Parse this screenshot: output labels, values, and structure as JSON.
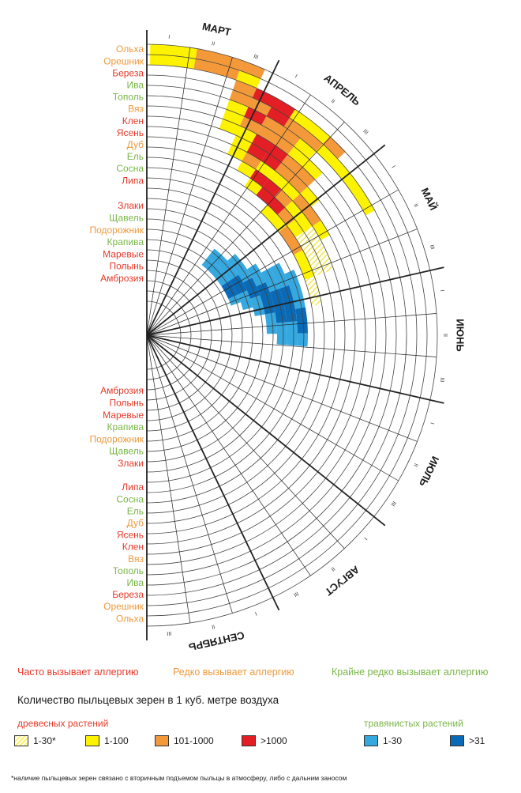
{
  "months": [
    "МАРТ",
    "АПРЕЛЬ",
    "МАЙ",
    "ИЮНЬ",
    "ИЮЛЬ",
    "АВГУСТ",
    "СЕНТЯБРЬ"
  ],
  "decade_marks": [
    "I",
    "II",
    "III"
  ],
  "colors": {
    "often": "#e8392a",
    "rare": "#ef9a3c",
    "very_rare": "#7ab648",
    "tree_low": "#fdf06a",
    "tree_1_100": "#fdf200",
    "tree_101_1000": "#f3993a",
    "tree_gt_1000": "#e31e24",
    "herb_1_30": "#35a8e0",
    "herb_gt_31": "#0a6ab5"
  },
  "chart_data": {
    "type": "radial-calendar",
    "title": "Количество пыльцевых зерен в 1 куб. метре воздуха",
    "time_axis": {
      "months": [
        "МАРТ",
        "АПРЕЛЬ",
        "МАЙ",
        "ИЮНЬ",
        "ИЮЛЬ",
        "АВГУСТ",
        "СЕНТЯБРЬ"
      ],
      "decades_per_month": [
        "I",
        "II",
        "III"
      ]
    },
    "categories": {
      "often": "Часто вызывает аллергию",
      "rare": "Редко вызывает аллергию",
      "very_rare": "Крайне редко вызывает аллергию"
    },
    "trees": [
      {
        "name": "Ольха",
        "category": "rare",
        "periods": [
          [
            2,
            3,
            "1-100"
          ],
          [
            4,
            5,
            "101-1000"
          ],
          [
            6,
            6,
            "101-1000"
          ]
        ]
      },
      {
        "name": "Орешник",
        "category": "rare",
        "periods": [
          [
            2,
            3,
            "1-100"
          ],
          [
            4,
            5,
            "101-1000"
          ],
          [
            6,
            6,
            "1-100"
          ]
        ]
      },
      {
        "name": "Береза",
        "category": "often",
        "periods": [
          [
            6,
            6,
            "101-1000"
          ],
          [
            7,
            8,
            ">1000"
          ],
          [
            9,
            10,
            "1-100"
          ],
          [
            11,
            11,
            "101-1000"
          ]
        ]
      },
      {
        "name": "Ива",
        "category": "very_rare",
        "periods": [
          [
            6,
            7,
            "101-1000"
          ],
          [
            8,
            8,
            ">1000"
          ],
          [
            9,
            10,
            "101-1000"
          ],
          [
            11,
            11,
            "1-100"
          ],
          [
            12,
            12,
            "1-100"
          ],
          [
            13,
            14,
            "1-100"
          ]
        ]
      },
      {
        "name": "Тополь",
        "category": "very_rare",
        "periods": [
          [
            6,
            6,
            "1-100"
          ],
          [
            7,
            7,
            ">1000"
          ],
          [
            8,
            9,
            "101-1000"
          ],
          [
            10,
            10,
            "1-100"
          ]
        ]
      },
      {
        "name": "Вяз",
        "category": "rare",
        "periods": [
          [
            6,
            6,
            "1-100"
          ],
          [
            7,
            7,
            "101-1000"
          ],
          [
            8,
            9,
            "101-1000"
          ],
          [
            10,
            11,
            "1-100"
          ]
        ]
      },
      {
        "name": "Клен",
        "category": "often",
        "periods": [
          [
            6,
            7,
            "1-100"
          ],
          [
            8,
            9,
            ">1000"
          ],
          [
            10,
            11,
            "101-1000"
          ]
        ]
      },
      {
        "name": "Ясень",
        "category": "often",
        "periods": [
          [
            7,
            7,
            "1-100"
          ],
          [
            8,
            8,
            ">1000"
          ],
          [
            9,
            9,
            ">1000"
          ],
          [
            10,
            11,
            "101-1000"
          ],
          [
            12,
            12,
            "1-100"
          ]
        ]
      },
      {
        "name": "Дуб",
        "category": "rare",
        "periods": [
          [
            7,
            7,
            "1-100"
          ],
          [
            8,
            8,
            "101-1000"
          ],
          [
            9,
            11,
            "1-100"
          ],
          [
            12,
            13,
            "101-1000"
          ],
          [
            14,
            14,
            "1-100"
          ]
        ]
      },
      {
        "name": "Ель",
        "category": "very_rare",
        "periods": [
          [
            8,
            8,
            "1-100"
          ],
          [
            9,
            9,
            ">1000"
          ],
          [
            10,
            10,
            ">1000"
          ],
          [
            11,
            11,
            "101-1000"
          ],
          [
            12,
            12,
            "1-100"
          ],
          [
            13,
            13,
            "1-100"
          ],
          [
            14,
            16,
            "1-30*"
          ]
        ]
      },
      {
        "name": "Сосна",
        "category": "very_rare",
        "periods": [
          [
            9,
            9,
            "1-100"
          ],
          [
            10,
            11,
            ">1000"
          ],
          [
            12,
            12,
            "101-1000"
          ],
          [
            13,
            13,
            "1-100"
          ],
          [
            14,
            16,
            "1-30*"
          ]
        ]
      },
      {
        "name": "Липа",
        "category": "often",
        "periods": [
          [
            11,
            12,
            "1-100"
          ],
          [
            13,
            14,
            "101-1000"
          ],
          [
            15,
            16,
            "1-100"
          ],
          [
            17,
            18,
            "1-30*"
          ]
        ]
      }
    ],
    "herbs": [
      {
        "name": "Злаки",
        "category": "often"
      },
      {
        "name": "Щавель",
        "category": "very_rare"
      },
      {
        "name": "Подорожник",
        "category": "rare"
      },
      {
        "name": "Крапива",
        "category": "very_rare"
      },
      {
        "name": "Маревые",
        "category": "often"
      },
      {
        "name": "Полынь",
        "category": "often"
      },
      {
        "name": "Амброзия",
        "category": "often"
      }
    ],
    "herb_periods": [
      {
        "name": "Злаки",
        "periods": [
          [
            10,
            13,
            "1-30"
          ],
          [
            14,
            15,
            ">31"
          ],
          [
            16,
            16,
            "1-30"
          ]
        ]
      },
      {
        "name": "Щавель",
        "periods": [
          [
            10,
            13,
            "1-30"
          ],
          [
            14,
            15,
            ">31"
          ],
          [
            16,
            17,
            "1-30"
          ]
        ]
      },
      {
        "name": "Подорожник",
        "periods": [
          [
            12,
            14,
            "1-30"
          ],
          [
            15,
            16,
            ">31"
          ],
          [
            17,
            18,
            "1-30"
          ]
        ]
      },
      {
        "name": "Крапива",
        "periods": [
          [
            14,
            15,
            "1-30"
          ],
          [
            16,
            18,
            ">31"
          ],
          [
            19,
            20,
            "1-30"
          ]
        ]
      },
      {
        "name": "Маревые",
        "periods": [
          [
            15,
            16,
            "1-30"
          ],
          [
            17,
            19,
            ">31"
          ],
          [
            20,
            21,
            "1-30"
          ]
        ]
      },
      {
        "name": "Полынь",
        "periods": [
          [
            15,
            16,
            "1-30"
          ],
          [
            17,
            19,
            ">31"
          ],
          [
            20,
            21,
            "1-30"
          ]
        ]
      },
      {
        "name": "Амброзия",
        "periods": [
          [
            16,
            18,
            "1-30"
          ],
          [
            19,
            20,
            ">31"
          ],
          [
            21,
            21,
            "1-30"
          ]
        ]
      }
    ],
    "legend": {
      "trees_label": "древесных растений",
      "herbs_label": "травянистых растений",
      "tree_levels": [
        "1-30*",
        "1-100",
        "101-1000",
        ">1000"
      ],
      "herb_levels": [
        "1-30",
        ">31"
      ]
    },
    "footnote": "*наличие пыльцевых зерен связано с вторичным подъемом пыльцы в атмосферу, либо с дальним заносом"
  }
}
